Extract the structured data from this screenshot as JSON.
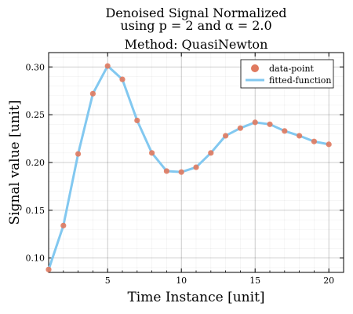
{
  "chart_data": {
    "type": "line",
    "title_lines": [
      "Denoised Signal  Normalized",
      "using p = 2 and α = 2.0",
      "Method: QuasiNewton"
    ],
    "xlabel": "Time Instance [unit]",
    "ylabel": "Signal value [unit]",
    "xlim": [
      1,
      21
    ],
    "ylim": [
      0.085,
      0.315
    ],
    "xticks": [
      5,
      10,
      15,
      20
    ],
    "yticks": [
      0.1,
      0.15,
      0.2,
      0.25,
      0.3
    ],
    "grid": true,
    "legend_position": "top-right",
    "x": [
      1,
      2,
      3,
      4,
      5,
      6,
      7,
      8,
      9,
      10,
      11,
      12,
      13,
      14,
      15,
      16,
      17,
      18,
      19,
      20
    ],
    "series": [
      {
        "name": "data-point",
        "kind": "scatter",
        "color": "#e07a5f",
        "values": [
          0.088,
          0.134,
          0.209,
          0.272,
          0.301,
          0.287,
          0.244,
          0.21,
          0.191,
          0.19,
          0.195,
          0.21,
          0.228,
          0.236,
          0.242,
          0.24,
          0.233,
          0.228,
          0.222,
          0.219
        ]
      },
      {
        "name": "fitted-function",
        "kind": "line",
        "color": "#82c8f0",
        "values": [
          0.088,
          0.134,
          0.209,
          0.272,
          0.301,
          0.287,
          0.244,
          0.21,
          0.191,
          0.19,
          0.195,
          0.21,
          0.228,
          0.236,
          0.242,
          0.24,
          0.233,
          0.228,
          0.222,
          0.219
        ]
      }
    ]
  }
}
